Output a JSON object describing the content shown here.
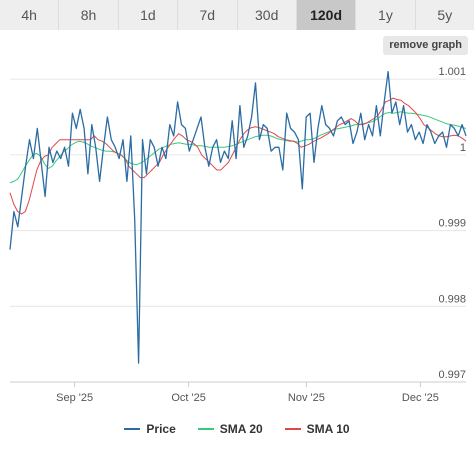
{
  "tabs": [
    {
      "label": "4h",
      "active": false
    },
    {
      "label": "8h",
      "active": false
    },
    {
      "label": "1d",
      "active": false
    },
    {
      "label": "7d",
      "active": false
    },
    {
      "label": "30d",
      "active": false
    },
    {
      "label": "120d",
      "active": true
    },
    {
      "label": "1y",
      "active": false
    },
    {
      "label": "5y",
      "active": false
    }
  ],
  "remove_graph_label": "remove graph",
  "chart_data": {
    "type": "line",
    "ylim": [
      0.997,
      1.0012
    ],
    "y_ticks": [
      {
        "value": 1.001,
        "label": "1.001"
      },
      {
        "value": 1.0,
        "label": "1"
      },
      {
        "value": 0.999,
        "label": "0.999"
      },
      {
        "value": 0.998,
        "label": "0.998"
      },
      {
        "value": 0.997,
        "label": "0.997"
      }
    ],
    "x_ticks": [
      {
        "day": 17,
        "label": "Sep '25"
      },
      {
        "day": 47,
        "label": "Oct '25"
      },
      {
        "day": 78,
        "label": "Nov '25"
      },
      {
        "day": 108,
        "label": "Dec '25"
      }
    ],
    "x_range": [
      0,
      120
    ],
    "series": [
      {
        "name": "Price",
        "color": "#2b6ca3",
        "values": [
          0.99875,
          0.99925,
          0.99905,
          0.99945,
          0.99985,
          1.0002,
          0.99995,
          1.00035,
          0.9999,
          0.99945,
          1.0001,
          0.9999,
          1.00005,
          0.99995,
          1.0001,
          0.99985,
          1.00055,
          1.00035,
          1.0006,
          1.00035,
          0.99975,
          1.0004,
          1.0001,
          0.99965,
          1.0001,
          1.0005,
          1.0002,
          1.0001,
          0.99995,
          1.0002,
          0.99965,
          1.00025,
          0.99915,
          0.99725,
          1.0002,
          0.99975,
          1.0002,
          1.0001,
          0.99985,
          1.0001,
          0.99995,
          1.0004,
          1.00025,
          1.0007,
          1.0004,
          1.00035,
          1.00005,
          1.0002,
          1.00035,
          1.0005,
          1.0001,
          0.99985,
          1.0001,
          1.0002,
          0.9999,
          1.00005,
          0.99995,
          1.00045,
          0.99995,
          1.00065,
          1.0001,
          1.00025,
          1.0005,
          1.00095,
          1.0002,
          1.0004,
          1.00035,
          1.00005,
          1.0001,
          1.0001,
          0.9998,
          1.00055,
          1.00035,
          1.0003,
          1.0002,
          0.99955,
          1.0005,
          1.00055,
          0.9999,
          1.00035,
          1.00065,
          1.0004,
          1.00035,
          1.00025,
          1.00045,
          1.0005,
          1.0004,
          1.00045,
          1.00015,
          1.0003,
          1.00055,
          1.0002,
          1.0004,
          1.00025,
          1.00065,
          1.00025,
          1.0007,
          1.0011,
          1.00055,
          1.0007,
          1.0004,
          1.00065,
          1.0003,
          1.0004,
          1.0002,
          1.0003,
          1.00015,
          1.0004,
          1.0003,
          1.00015,
          1.00025,
          1.0003,
          1.0001,
          1.0004,
          1.00035,
          1.00025,
          1.0004,
          1.00025
        ]
      },
      {
        "name": "SMA 20",
        "color": "#3cc87a",
        "values": [
          0.99963,
          0.99965,
          0.99968,
          0.99976,
          0.99985,
          0.99993,
          1.0,
          1.00002,
          0.99998,
          0.99988,
          0.99982,
          0.99985,
          0.99992,
          0.99998,
          1.00004,
          1.00008,
          1.00013,
          1.00016,
          1.00018,
          1.00017,
          1.00015,
          1.00012,
          1.0001,
          1.00008,
          1.00006,
          1.00005,
          1.00005,
          1.00004,
          1.00002,
          1.0,
          0.99995,
          0.9999,
          0.99988,
          0.99987,
          0.99989,
          0.99992,
          0.99996,
          1.0,
          1.00004,
          1.00008,
          1.0001,
          1.00012,
          1.00014,
          1.00015,
          1.00016,
          1.00015,
          1.00014,
          1.00014,
          1.00013,
          1.00012,
          1.00012,
          1.00011,
          1.0001,
          1.0001,
          1.0001,
          1.0001,
          1.0001,
          1.00011,
          1.00012,
          1.00014,
          1.00016,
          1.00018,
          1.0002,
          1.00022,
          1.00024,
          1.00025,
          1.00026,
          1.00026,
          1.00025,
          1.00023,
          1.00021,
          1.0002,
          1.00019,
          1.00018,
          1.00018,
          1.00017,
          1.00018,
          1.0002,
          1.0002,
          1.00021,
          1.00023,
          1.00026,
          1.00028,
          1.0003,
          1.00032,
          1.00034,
          1.00035,
          1.00036,
          1.00037,
          1.00038,
          1.0004,
          1.0004,
          1.00041,
          1.00042,
          1.00043,
          1.00045,
          1.00048,
          1.00052,
          1.00055,
          1.00056,
          1.00055,
          1.00056,
          1.00057,
          1.00056,
          1.00055,
          1.00055,
          1.00054,
          1.00053,
          1.00052,
          1.00051,
          1.00049,
          1.00047,
          1.00045,
          1.00043,
          1.00041,
          1.0004,
          1.00039,
          1.00038,
          1.00036,
          1.00035
        ]
      },
      {
        "name": "SMA 10",
        "color": "#e04848",
        "values": [
          0.9995,
          0.99935,
          0.99925,
          0.99922,
          0.99925,
          0.9994,
          0.9996,
          0.9998,
          0.99992,
          0.99998,
          1.0,
          1.0001,
          1.00015,
          1.0002,
          1.0002,
          1.0002,
          1.0002,
          1.0002,
          1.0002,
          1.0002,
          1.0002,
          1.0002,
          1.00025,
          1.0002,
          1.00018,
          1.00015,
          1.0001,
          1.00005,
          1.00002,
          1.0,
          0.99995,
          0.99985,
          0.9998,
          0.99975,
          0.9997,
          0.9997,
          0.99975,
          0.9998,
          0.99985,
          0.9999,
          1.0,
          1.00008,
          1.00015,
          1.00022,
          1.00028,
          1.00025,
          1.0002,
          1.00018,
          1.00015,
          1.0001,
          1.0,
          0.99995,
          0.9999,
          0.99985,
          0.9998,
          0.9998,
          0.99985,
          0.9999,
          1.0,
          1.0001,
          1.0002,
          1.00028,
          1.00033,
          1.00036,
          1.00037,
          1.00036,
          1.00034,
          1.00032,
          1.0003,
          1.00028,
          1.00024,
          1.00022,
          1.0002,
          1.00019,
          1.00018,
          1.00015,
          1.0001,
          1.00012,
          1.00014,
          1.00017,
          1.0002,
          1.00022,
          1.00025,
          1.00028,
          1.00032,
          1.00036,
          1.0004,
          1.00042,
          1.00045,
          1.00048,
          1.00045,
          1.0004,
          1.0004,
          1.00042,
          1.00045,
          1.00048,
          1.00052,
          1.0006,
          1.0007,
          1.00072,
          1.00075,
          1.00073,
          1.00072,
          1.00068,
          1.00065,
          1.0006,
          1.00055,
          1.00048,
          1.0004,
          1.00036,
          1.00032,
          1.00028,
          1.00025,
          1.00024,
          1.00024,
          1.00025,
          1.00026,
          1.00025,
          1.00022,
          1.00018
        ]
      }
    ]
  }
}
